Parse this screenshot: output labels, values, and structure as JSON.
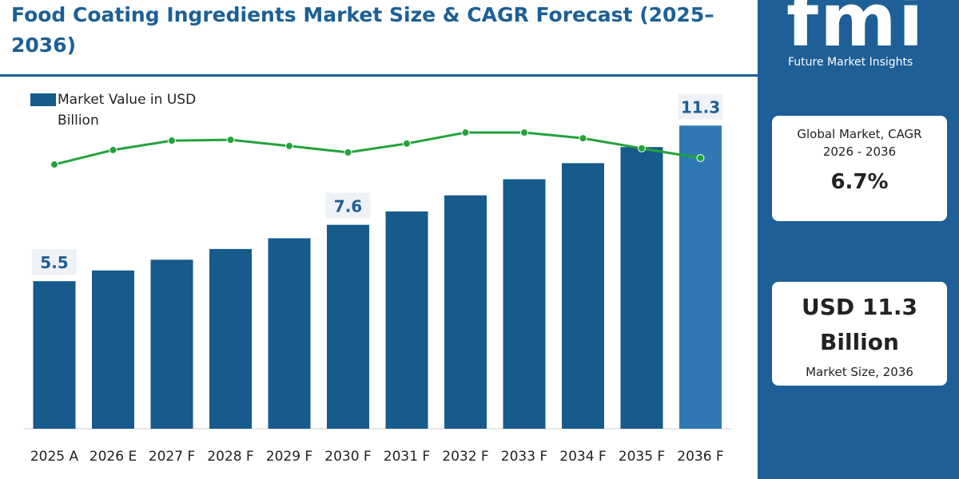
{
  "chart_data": {
    "type": "bar",
    "title": "Food Coating Ingredients Market Size & CAGR Forecast (2025–2036)",
    "categories": [
      "2025 A",
      "2026 E",
      "2027 F",
      "2028 F",
      "2029 F",
      "2030 F",
      "2031 F",
      "2032 F",
      "2033 F",
      "2034 F",
      "2035 F",
      "2036 F"
    ],
    "series": [
      {
        "name": "Market Value in USD Billion",
        "color": "#175a8c",
        "colors": [
          "#175a8c",
          "#175a8c",
          "#175a8c",
          "#175a8c",
          "#175a8c",
          "#175a8c",
          "#175a8c",
          "#175a8c",
          "#175a8c",
          "#175a8c",
          "#175a8c",
          "#2f78b4"
        ],
        "values": [
          5.5,
          5.9,
          6.3,
          6.7,
          7.1,
          7.6,
          8.1,
          8.7,
          9.3,
          9.9,
          10.5,
          11.3
        ],
        "value_labels": [
          "5.5",
          null,
          null,
          null,
          null,
          "7.6",
          null,
          null,
          null,
          null,
          null,
          "11.3"
        ]
      },
      {
        "type": "line",
        "color": "#23a33a",
        "values": [
          9.85,
          10.39,
          10.74,
          10.77,
          10.54,
          10.3,
          10.63,
          11.04,
          11.04,
          10.83,
          10.45,
          10.09
        ]
      }
    ],
    "ylim": [
      0,
      13
    ],
    "legend": "top-left"
  },
  "panel": {
    "logo": "fmi",
    "logo_subtitle": "Future Market Insights",
    "cards": [
      {
        "label": "Global Market, CAGR 2026 - 2036",
        "value": "6.7%"
      },
      {
        "value": "USD 11.3 Billion",
        "label": "Market Size, 2036"
      }
    ]
  }
}
